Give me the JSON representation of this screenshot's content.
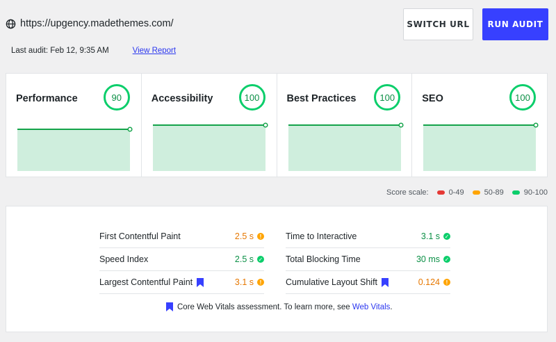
{
  "header": {
    "url": "https://upgency.madethemes.com/",
    "last_audit": "Last audit: Feb 12, 9:35 AM",
    "view_report": "View Report",
    "switch_url": "SWITCH URL",
    "run_audit": "RUN AUDIT"
  },
  "cards": [
    {
      "title": "Performance",
      "score": "90"
    },
    {
      "title": "Accessibility",
      "score": "100"
    },
    {
      "title": "Best Practices",
      "score": "100"
    },
    {
      "title": "SEO",
      "score": "100"
    }
  ],
  "scale": {
    "label": "Score scale:",
    "ranges": [
      {
        "label": "0-49",
        "color": "#e53935"
      },
      {
        "label": "50-89",
        "color": "#ffa400"
      },
      {
        "label": "90-100",
        "color": "#0cce6b"
      }
    ]
  },
  "metrics": {
    "left": [
      {
        "name": "First Contentful Paint",
        "value": "2.5 s",
        "status": "orange"
      },
      {
        "name": "Speed Index",
        "value": "2.5 s",
        "status": "green"
      },
      {
        "name": "Largest Contentful Paint",
        "value": "3.1 s",
        "status": "orange",
        "bookmark": true
      }
    ],
    "right": [
      {
        "name": "Time to Interactive",
        "value": "3.1 s",
        "status": "green"
      },
      {
        "name": "Total Blocking Time",
        "value": "30 ms",
        "status": "green"
      },
      {
        "name": "Cumulative Layout Shift",
        "value": "0.124",
        "status": "orange",
        "bookmark": true
      }
    ],
    "footnote": "Core Web Vitals assessment. To learn more, see",
    "footnote_link": "Web Vitals",
    "footnote_end": "."
  },
  "colors": {
    "accent": "#3740ff",
    "pass": "#0cce6b",
    "average": "#ffa400",
    "fail": "#e53935"
  }
}
